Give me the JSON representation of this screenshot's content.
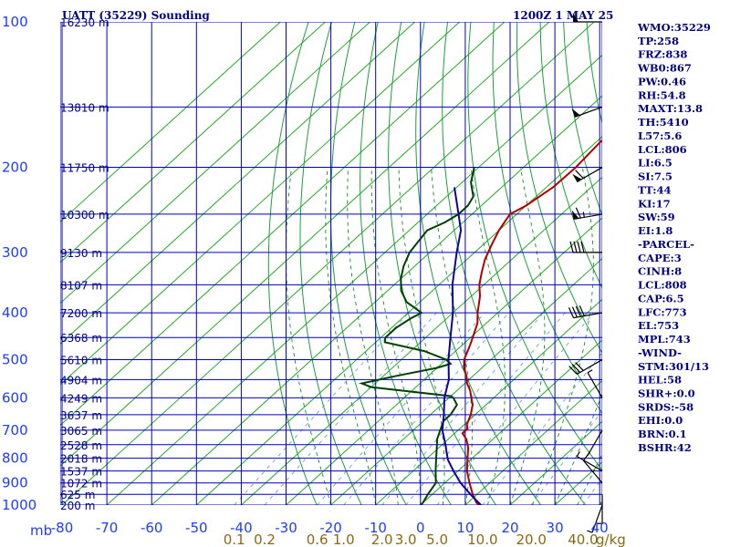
{
  "header": {
    "title": "UATT (35229) Sounding",
    "time": "1200Z  1 MAY 25"
  },
  "chart_data": {
    "type": "line",
    "chart_kind": "skew-T log-p sounding",
    "y_axis": {
      "scale": "log",
      "unit_label": "mb",
      "ticks": [
        100,
        200,
        300,
        400,
        500,
        600,
        700,
        800,
        900,
        1000
      ],
      "ylim": [
        100,
        1000
      ]
    },
    "x_axis": {
      "unit": "C",
      "ticks": [
        -80,
        -70,
        -60,
        -50,
        -40,
        -30,
        -20,
        -10,
        0,
        10,
        20,
        30,
        40
      ]
    },
    "mixing_ratio": {
      "unit_label": "g/kg",
      "tick_labels": [
        "0.1",
        "0.2",
        "0.6",
        "1.0",
        "2.0",
        "3.0",
        "5.0",
        "10.0",
        "20.0",
        "40.0"
      ]
    },
    "heights": [
      {
        "p": 100,
        "label": "16230 m"
      },
      {
        "p": 150,
        "label": "13810 m"
      },
      {
        "p": 200,
        "label": "11750 m"
      },
      {
        "p": 250,
        "label": "10300 m"
      },
      {
        "p": 300,
        "label": "9130 m"
      },
      {
        "p": 350,
        "label": "8107 m"
      },
      {
        "p": 400,
        "label": "7200 m"
      },
      {
        "p": 450,
        "label": "6368 m"
      },
      {
        "p": 500,
        "label": "5610 m"
      },
      {
        "p": 550,
        "label": "4904 m"
      },
      {
        "p": 600,
        "label": "4249 m"
      },
      {
        "p": 650,
        "label": "3637 m"
      },
      {
        "p": 700,
        "label": "3065 m"
      },
      {
        "p": 750,
        "label": "2528 m"
      },
      {
        "p": 800,
        "label": "2018 m"
      },
      {
        "p": 850,
        "label": "1537 m"
      },
      {
        "p": 900,
        "label": "1072 m"
      },
      {
        "p": 950,
        "label": "625 m"
      },
      {
        "p": 1000,
        "label": "200 m"
      }
    ],
    "series": [
      {
        "key": "temperature",
        "color": "#b00000",
        "points": [
          [
            1000,
            13.3
          ],
          [
            990,
            12.0
          ],
          [
            950,
            9.0
          ],
          [
            900,
            5.5
          ],
          [
            850,
            2.0
          ],
          [
            800,
            -1.0
          ],
          [
            760,
            -3.5
          ],
          [
            730,
            -6.0
          ],
          [
            710,
            -8.3
          ],
          [
            695,
            -8.3
          ],
          [
            680,
            -9.5
          ],
          [
            650,
            -11.0
          ],
          [
            620,
            -13.0
          ],
          [
            600,
            -15.0
          ],
          [
            580,
            -17.0
          ],
          [
            560,
            -19.5
          ],
          [
            540,
            -21.5
          ],
          [
            520,
            -24.0
          ],
          [
            500,
            -26.0
          ],
          [
            470,
            -28.0
          ],
          [
            450,
            -29.5
          ],
          [
            420,
            -32.0
          ],
          [
            400,
            -34.5
          ],
          [
            370,
            -38.0
          ],
          [
            350,
            -41.0
          ],
          [
            330,
            -43.5
          ],
          [
            310,
            -46.0
          ],
          [
            290,
            -48.0
          ],
          [
            270,
            -50.0
          ],
          [
            250,
            -51.5
          ],
          [
            240,
            -50.0
          ],
          [
            220,
            -48.5
          ],
          [
            200,
            -48.3
          ],
          [
            180,
            -49.0
          ],
          [
            160,
            -49.5
          ],
          [
            150,
            -49.5
          ],
          [
            140,
            -49.5
          ],
          [
            120,
            -50.0
          ],
          [
            110,
            -51.0
          ],
          [
            100,
            -52.0
          ]
        ]
      },
      {
        "key": "dewpoint",
        "color": "#004000",
        "points": [
          [
            1000,
            0.0
          ],
          [
            990,
            0.0
          ],
          [
            950,
            -1.0
          ],
          [
            900,
            -2.0
          ],
          [
            850,
            -5.0
          ],
          [
            800,
            -8.0
          ],
          [
            760,
            -10.5
          ],
          [
            730,
            -12.5
          ],
          [
            700,
            -14.0
          ],
          [
            670,
            -15.5
          ],
          [
            650,
            -15.5
          ],
          [
            620,
            -16.5
          ],
          [
            600,
            -19.0
          ],
          [
            595,
            -20.0
          ],
          [
            570,
            -40.0
          ],
          [
            560,
            -43.0
          ],
          [
            540,
            -37.0
          ],
          [
            520,
            -30.0
          ],
          [
            510,
            -28.0
          ],
          [
            500,
            -30.0
          ],
          [
            480,
            -37.0
          ],
          [
            460,
            -48.0
          ],
          [
            450,
            -49.0
          ],
          [
            430,
            -49.0
          ],
          [
            410,
            -48.0
          ],
          [
            400,
            -47.0
          ],
          [
            380,
            -53.0
          ],
          [
            360,
            -57.0
          ],
          [
            340,
            -60.0
          ],
          [
            320,
            -62.5
          ],
          [
            300,
            -64.5
          ],
          [
            280,
            -65.5
          ],
          [
            270,
            -66.0
          ],
          [
            260,
            -64.0
          ],
          [
            250,
            -63.0
          ],
          [
            240,
            -63.0
          ],
          [
            230,
            -64.0
          ],
          [
            215,
            -68.0
          ],
          [
            200,
            -71.0
          ]
        ]
      },
      {
        "key": "parcel",
        "color": "#1000a0",
        "points": [
          [
            1000,
            13.5
          ],
          [
            950,
            8.5
          ],
          [
            900,
            3.5
          ],
          [
            850,
            -1.0
          ],
          [
            806,
            -5.0
          ],
          [
            773,
            -7.5
          ],
          [
            753,
            -9.0
          ],
          [
            700,
            -13.5
          ],
          [
            650,
            -17.0
          ],
          [
            600,
            -21.0
          ],
          [
            550,
            -24.5
          ],
          [
            500,
            -29.5
          ],
          [
            450,
            -34.5
          ],
          [
            400,
            -40.0
          ],
          [
            350,
            -47.0
          ],
          [
            300,
            -54.0
          ],
          [
            270,
            -58.5
          ],
          [
            250,
            -63.0
          ],
          [
            220,
            -70.5
          ]
        ]
      }
    ],
    "wind_barbs": [
      {
        "p": 100,
        "dir": 270,
        "speed": 50
      },
      {
        "p": 150,
        "dir": 250,
        "speed": 50
      },
      {
        "p": 200,
        "dir": 240,
        "speed": 60
      },
      {
        "p": 250,
        "dir": 260,
        "speed": 65
      },
      {
        "p": 300,
        "dir": 270,
        "speed": 40
      },
      {
        "p": 400,
        "dir": 260,
        "speed": 40
      },
      {
        "p": 500,
        "dir": 240,
        "speed": 30
      },
      {
        "p": 600,
        "dir": 330,
        "speed": 5
      },
      {
        "p": 700,
        "dir": 210,
        "speed": 0
      },
      {
        "p": 850,
        "dir": 300,
        "speed": 5
      },
      {
        "p": 900,
        "dir": 320,
        "speed": 10
      },
      {
        "p": 950,
        "dir": 180,
        "speed": 5
      },
      {
        "p": 1000,
        "dir": 200,
        "speed": 5
      }
    ]
  },
  "indices": [
    "WMO:35229",
    "TP:258",
    "FRZ:838",
    "WB0:867",
    "PW:0.46",
    "RH:54.8",
    "MAXT:13.8",
    "TH:5410",
    "L57:5.6",
    "LCL:806",
    "LI:6.5",
    "SI:7.5",
    "TT:44",
    "KI:17",
    "SW:59",
    "EI:1.8",
    "-PARCEL-",
    "CAPE:3",
    "CINH:8",
    "LCL:808",
    "CAP:6.5",
    "LFC:773",
    "EL:753",
    "MPL:743",
    "-WIND-",
    "STM:301/13",
    "HEL:58",
    "SHR+:0.0",
    "SRDS:-58",
    "EHI:0.0",
    "BRN:0.1",
    "BSHR:42"
  ],
  "colors": {
    "grid_blue": "#0000c0",
    "dry_adiabat": "#1e9e3c",
    "skew_isotherm": "#22aa22",
    "moist_adiabat": "#1a8a2a",
    "mixing_ratio": "#6aa0d8",
    "axis_text": "#1e3cff",
    "wind_barb": "#000000"
  }
}
